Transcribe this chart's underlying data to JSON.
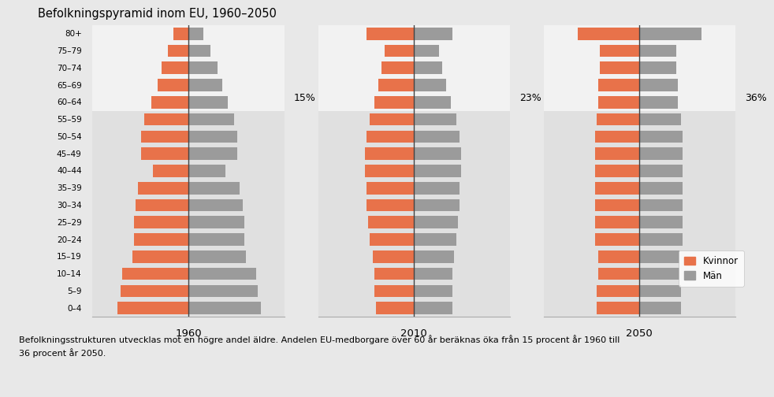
{
  "title": "Befolkningspyramid inom EU, 1960–2050",
  "age_groups": [
    "80+",
    "75–79",
    "70–74",
    "65–69",
    "60–64",
    "55–59",
    "50–54",
    "45–49",
    "40–44",
    "35–39",
    "30–34",
    "25–29",
    "20–24",
    "15–19",
    "10–14",
    "5–9",
    "0–4"
  ],
  "years": [
    "1960",
    "2010",
    "2050"
  ],
  "percentages": [
    "15%",
    "23%",
    "36%"
  ],
  "color_women": "#E8724A",
  "color_men": "#9B9B9B",
  "color_bg_upper": "#F2F2F2",
  "color_bg_lower": "#E0E0E0",
  "color_bg_fig": "#E8E8E8",
  "subtitle": "Befolkningsstrukturen utvecklas mot en högre andel äldre. Andelen EU-medborgare över 60 år beräknas öka från 15 procent år 1960 till\n36 procent år 2050.",
  "legend_women": "Kvinnor",
  "legend_men": "Män",
  "data_1960_women": [
    1.0,
    1.4,
    1.8,
    2.1,
    2.5,
    3.0,
    3.2,
    3.2,
    2.4,
    3.4,
    3.6,
    3.7,
    3.7,
    3.8,
    4.5,
    4.6,
    4.8
  ],
  "data_1960_men": [
    1.0,
    1.5,
    2.0,
    2.3,
    2.7,
    3.1,
    3.3,
    3.3,
    2.5,
    3.5,
    3.7,
    3.8,
    3.8,
    3.9,
    4.6,
    4.7,
    4.9
  ],
  "data_2010_women": [
    3.2,
    2.0,
    2.2,
    2.4,
    2.7,
    3.0,
    3.2,
    3.3,
    3.3,
    3.2,
    3.2,
    3.1,
    3.0,
    2.8,
    2.7,
    2.7,
    2.6
  ],
  "data_2010_men": [
    2.6,
    1.7,
    1.9,
    2.2,
    2.5,
    2.9,
    3.1,
    3.2,
    3.2,
    3.1,
    3.1,
    3.0,
    2.9,
    2.7,
    2.6,
    2.6,
    2.6
  ],
  "data_2050_women": [
    4.2,
    2.7,
    2.7,
    2.8,
    2.8,
    2.9,
    3.0,
    3.0,
    3.0,
    3.0,
    3.0,
    3.0,
    3.0,
    2.8,
    2.8,
    2.9,
    2.9
  ],
  "data_2050_men": [
    4.2,
    2.5,
    2.5,
    2.6,
    2.6,
    2.8,
    2.9,
    2.9,
    2.9,
    2.9,
    2.9,
    2.9,
    2.9,
    2.7,
    2.7,
    2.8,
    2.8
  ]
}
